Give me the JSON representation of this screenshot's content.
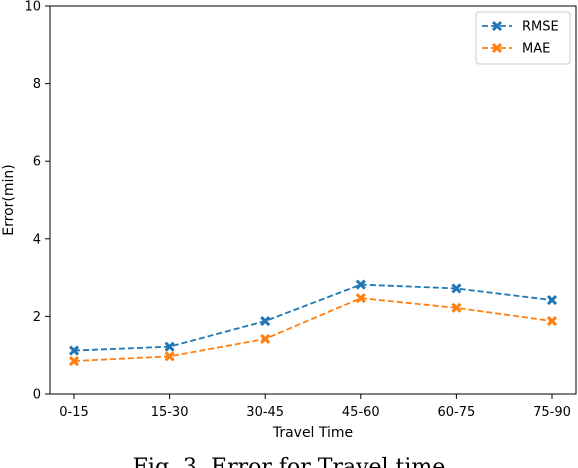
{
  "chart_data": {
    "type": "line",
    "title": "",
    "xlabel": "Travel Time",
    "ylabel": "Error(min)",
    "categories": [
      "0-15",
      "15-30",
      "30-45",
      "45-60",
      "60-75",
      "75-90"
    ],
    "ylim": [
      0,
      10
    ],
    "yticks": [
      0,
      2,
      4,
      6,
      8,
      10
    ],
    "grid": false,
    "legend_position": "top-right",
    "series": [
      {
        "name": "RMSE",
        "color": "#1f77b4",
        "marker": "x",
        "linestyle": "dashed",
        "values": [
          1.12,
          1.22,
          1.88,
          2.82,
          2.72,
          2.42
        ]
      },
      {
        "name": "MAE",
        "color": "#ff7f0e",
        "marker": "x",
        "linestyle": "dashed",
        "values": [
          0.85,
          0.97,
          1.42,
          2.47,
          2.22,
          1.88
        ]
      }
    ]
  },
  "caption": "Fig. 3. Error for Travel time"
}
